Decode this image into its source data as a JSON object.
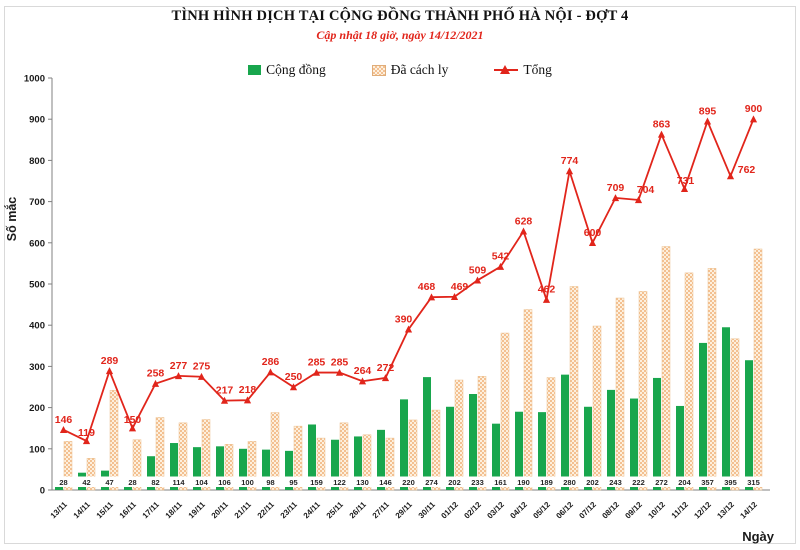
{
  "title": "TÌNH HÌNH DỊCH TẠI CỘNG ĐỒNG THÀNH PHỐ HÀ NỘI - ĐỢT 4",
  "subtitle": "Cập nhật 18 giờ, ngày 14/12/2021",
  "legend": {
    "community": "Cộng đồng",
    "quarantine": "Đã cách ly",
    "total": "Tổng"
  },
  "colors": {
    "community": "#18a64d",
    "quarantine_fill": "#fdf0de",
    "quarantine_dot": "#f3c091",
    "total": "#e1251b"
  },
  "chart_data": {
    "type": "bar",
    "title": "TÌNH HÌNH DỊCH TẠI CỘNG ĐỒNG THÀNH PHỐ HÀ NỘI - ĐỢT 4",
    "subtitle": "Cập nhật 18 giờ, ngày 14/12/2021",
    "xlabel": "Ngày",
    "ylabel": "Số mắc",
    "ylim": [
      0,
      1000
    ],
    "ytick_step": 100,
    "grid": false,
    "legend_position": "top",
    "categories": [
      "13/11",
      "14/11",
      "15/11",
      "16/11",
      "17/11",
      "18/11",
      "19/11",
      "20/11",
      "21/11",
      "22/11",
      "23/11",
      "24/11",
      "25/11",
      "26/11",
      "27/11",
      "29/11",
      "30/11",
      "01/12",
      "02/12",
      "03/12",
      "04/12",
      "05/12",
      "06/12",
      "07/12",
      "08/12",
      "09/12",
      "10/12",
      "11/12",
      "12/12",
      "13/12",
      "14/12"
    ],
    "series": [
      {
        "name": "Cộng đồng",
        "type": "bar",
        "labeled": true,
        "values": [
          28,
          42,
          47,
          28,
          82,
          114,
          104,
          106,
          100,
          98,
          95,
          159,
          122,
          130,
          146,
          220,
          274,
          202,
          233,
          161,
          190,
          189,
          280,
          202,
          243,
          222,
          272,
          204,
          357,
          395,
          315
        ]
      },
      {
        "name": "Đã cách ly",
        "type": "bar",
        "labeled": false,
        "values": [
          118,
          77,
          242,
          122,
          176,
          163,
          171,
          111,
          118,
          188,
          155,
          126,
          163,
          134,
          126,
          170,
          194,
          267,
          276,
          381,
          438,
          273,
          494,
          398,
          466,
          482,
          591,
          527,
          538,
          367,
          585
        ]
      },
      {
        "name": "Tổng",
        "type": "line",
        "labeled": true,
        "values": [
          146,
          119,
          289,
          150,
          258,
          277,
          275,
          217,
          218,
          286,
          250,
          285,
          285,
          264,
          272,
          390,
          468,
          469,
          509,
          542,
          628,
          462,
          774,
          600,
          709,
          704,
          863,
          731,
          895,
          762,
          900
        ]
      }
    ]
  }
}
